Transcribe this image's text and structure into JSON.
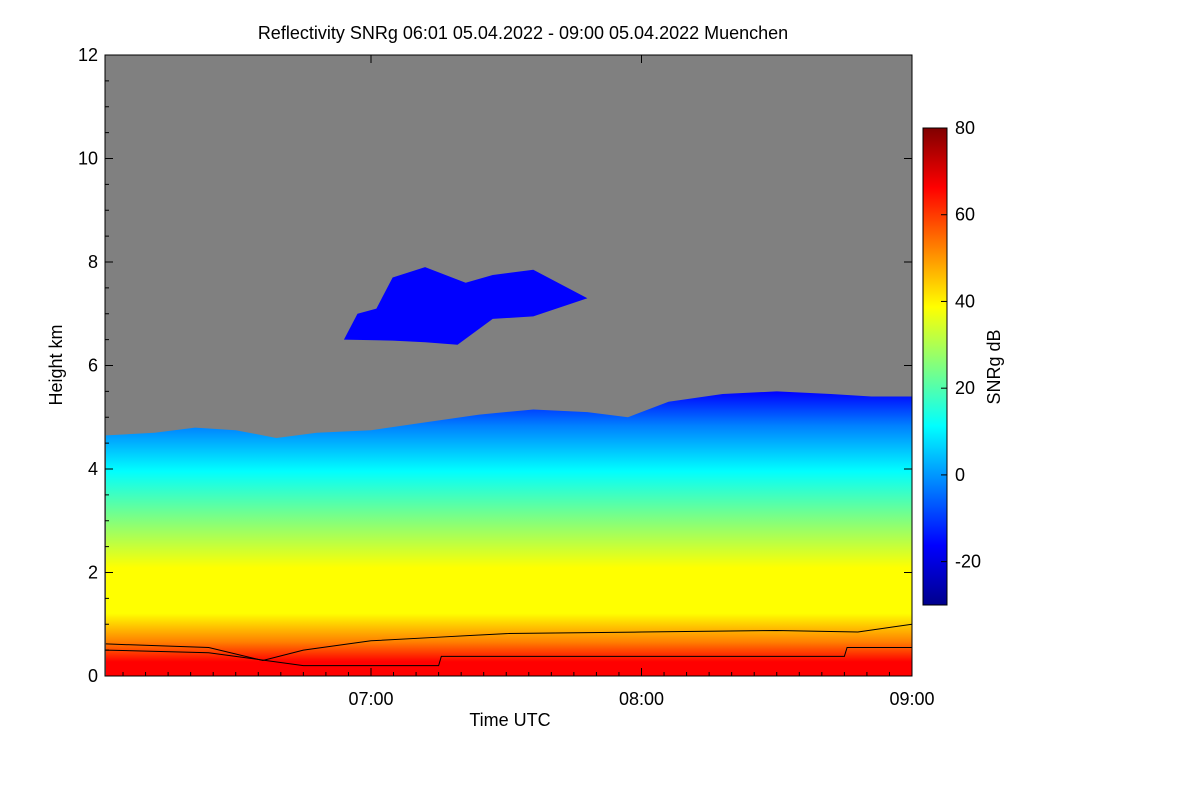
{
  "chart_data": {
    "type": "heatmap",
    "title": "Reflectivity SNRg   06:01 05.04.2022 - 09:00 05.04.2022 Muenchen",
    "xlabel": "Time UTC",
    "ylabel": "Height km",
    "x_range": [
      "06:01",
      "09:00"
    ],
    "xlim_hours": [
      6.0167,
      9.0
    ],
    "x_ticks": [
      "07:00",
      "08:00",
      "09:00"
    ],
    "x_tick_values": [
      7,
      8,
      9
    ],
    "ylim": [
      0,
      12
    ],
    "y_ticks": [
      "0",
      "2",
      "4",
      "6",
      "8",
      "10",
      "12"
    ],
    "y_tick_values": [
      0,
      2,
      4,
      6,
      8,
      10,
      12
    ],
    "colorbar": {
      "label": "SNRg dB",
      "range": [
        -30,
        80
      ],
      "ticks": [
        "-20",
        "0",
        "20",
        "40",
        "60",
        "80"
      ],
      "tick_values": [
        -20,
        0,
        20,
        40,
        60,
        80
      ],
      "colors": [
        "#00008c",
        "#0000ff",
        "#0080ff",
        "#00ffff",
        "#80ff80",
        "#ffff00",
        "#ff8000",
        "#ff0000",
        "#800000"
      ]
    },
    "background_color": "#808080",
    "cloud_top_km": [
      [
        6.02,
        4.65
      ],
      [
        6.2,
        4.7
      ],
      [
        6.35,
        4.8
      ],
      [
        6.5,
        4.75
      ],
      [
        6.65,
        4.6
      ],
      [
        6.8,
        4.7
      ],
      [
        7.0,
        4.75
      ],
      [
        7.2,
        4.9
      ],
      [
        7.4,
        5.05
      ],
      [
        7.6,
        5.15
      ],
      [
        7.8,
        5.1
      ],
      [
        7.95,
        5.0
      ],
      [
        8.1,
        5.3
      ],
      [
        8.3,
        5.45
      ],
      [
        8.5,
        5.5
      ],
      [
        8.7,
        5.45
      ],
      [
        8.85,
        5.4
      ],
      [
        9.0,
        5.4
      ]
    ],
    "upper_cloud_km": {
      "x_hours": [
        6.9,
        7.8
      ],
      "y_km": [
        6.4,
        7.9
      ]
    },
    "lines": [
      {
        "name": "upper boundary",
        "points": [
          [
            6.02,
            0.62
          ],
          [
            6.4,
            0.55
          ],
          [
            6.6,
            0.3
          ],
          [
            6.75,
            0.5
          ],
          [
            7.0,
            0.68
          ],
          [
            7.25,
            0.75
          ],
          [
            7.5,
            0.82
          ],
          [
            8.0,
            0.85
          ],
          [
            8.5,
            0.88
          ],
          [
            8.8,
            0.85
          ],
          [
            9.0,
            1.0
          ]
        ]
      },
      {
        "name": "lower boundary",
        "points": [
          [
            6.02,
            0.5
          ],
          [
            6.4,
            0.45
          ],
          [
            6.75,
            0.2
          ],
          [
            7.25,
            0.2
          ],
          [
            7.26,
            0.38
          ],
          [
            8.75,
            0.38
          ],
          [
            8.76,
            0.55
          ],
          [
            9.0,
            0.55
          ]
        ]
      }
    ]
  }
}
